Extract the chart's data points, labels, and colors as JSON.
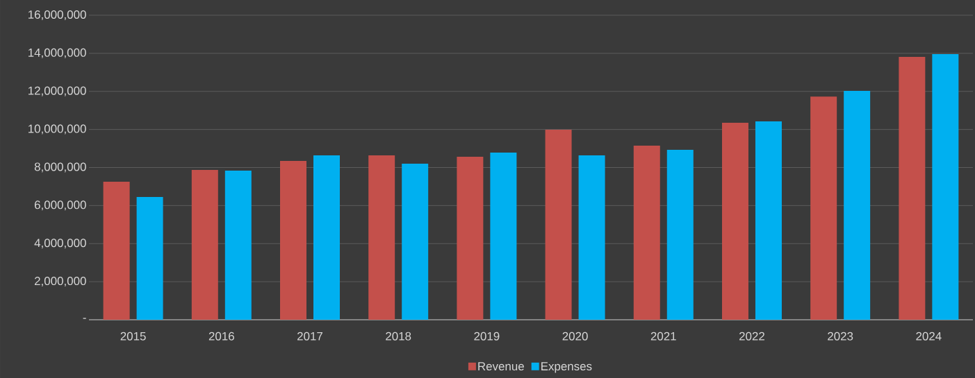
{
  "chart_data": {
    "type": "bar",
    "categories": [
      "2015",
      "2016",
      "2017",
      "2018",
      "2019",
      "2020",
      "2021",
      "2022",
      "2023",
      "2024"
    ],
    "series": [
      {
        "name": "Revenue",
        "color": "#c4504b",
        "values": [
          7250000,
          7870000,
          8350000,
          8640000,
          8560000,
          9990000,
          9150000,
          10350000,
          11730000,
          13810000
        ]
      },
      {
        "name": "Expenses",
        "color": "#00b0f0",
        "values": [
          6450000,
          7840000,
          8640000,
          8200000,
          8780000,
          8640000,
          8930000,
          10420000,
          12030000,
          13960000
        ]
      }
    ],
    "ylim": [
      0,
      16000000
    ],
    "yticks": [
      {
        "value": 0,
        "label": "-"
      },
      {
        "value": 2000000,
        "label": "2,000,000"
      },
      {
        "value": 4000000,
        "label": "4,000,000"
      },
      {
        "value": 6000000,
        "label": "6,000,000"
      },
      {
        "value": 8000000,
        "label": "8,000,000"
      },
      {
        "value": 10000000,
        "label": "10,000,000"
      },
      {
        "value": 12000000,
        "label": "12,000,000"
      },
      {
        "value": 14000000,
        "label": "14,000,000"
      },
      {
        "value": 16000000,
        "label": "16,000,000"
      }
    ],
    "grid": "y",
    "legend": "bottom"
  }
}
